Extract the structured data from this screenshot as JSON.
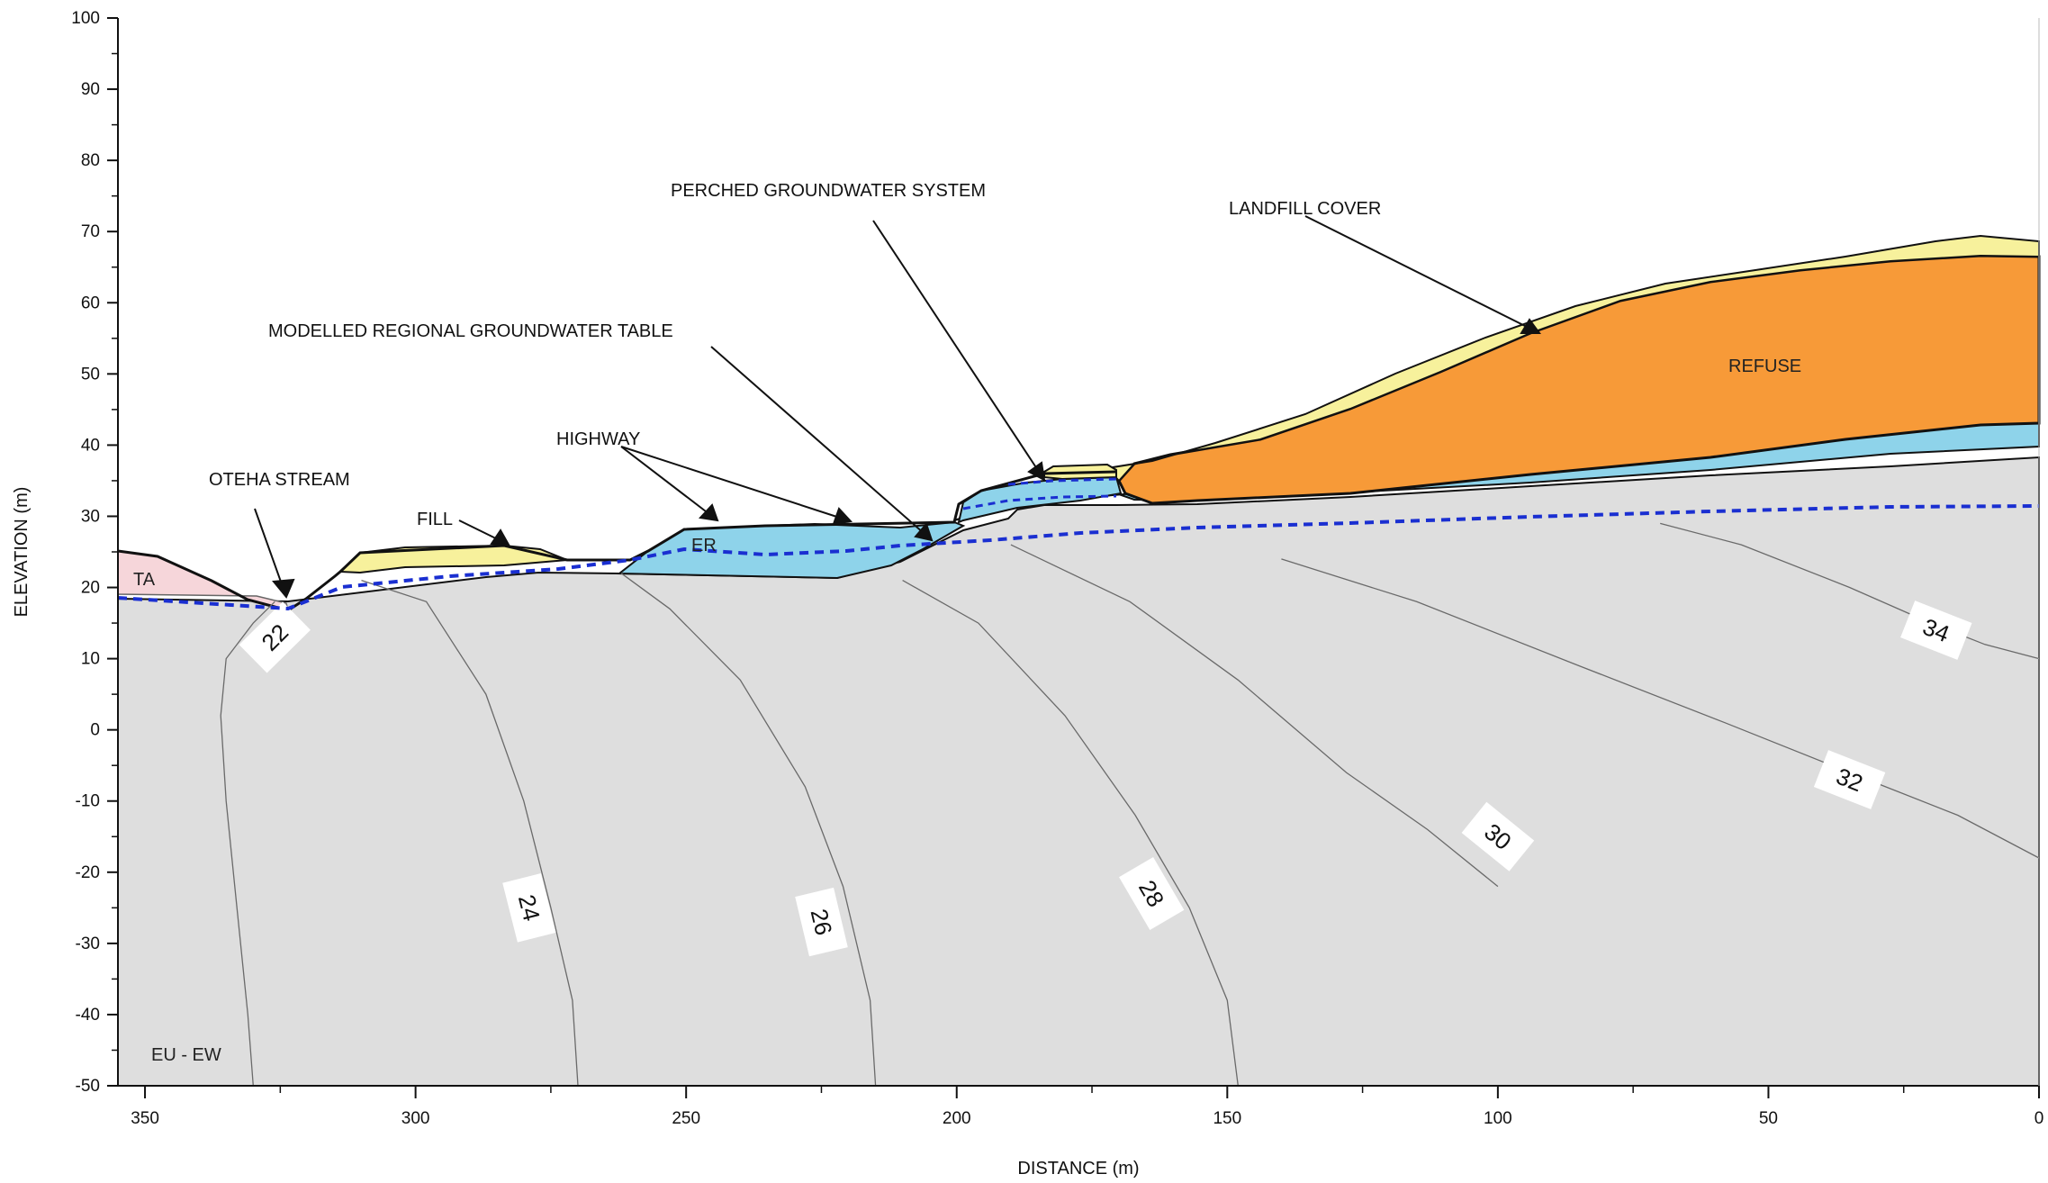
{
  "axes": {
    "xlabel": "DISTANCE (m)",
    "ylabel": "ELEVATION (m)",
    "x_range": [
      355,
      0
    ],
    "y_range": [
      -50,
      100
    ],
    "x_ticks": [
      350,
      300,
      250,
      200,
      150,
      100,
      50,
      0
    ],
    "y_ticks": [
      100,
      90,
      80,
      70,
      60,
      50,
      40,
      30,
      20,
      10,
      0,
      -10,
      -20,
      -30,
      -40,
      -50
    ]
  },
  "colors": {
    "base": "#dedede",
    "refuse": "#f79a38",
    "groundwater_unit": "#8ed3ea",
    "fill_cover": "#f7f19c",
    "ta_unit": "#f6d6da",
    "water_table": "#1a2fd1",
    "contour_line": "#6a6a6a"
  },
  "unit_labels": {
    "ta": "TA",
    "er": "ER",
    "refuse": "REFUSE",
    "eu_ew": "EU - EW"
  },
  "annotations": {
    "perched": "PERCHED GROUNDWATER SYSTEM",
    "landfill_cover": "LANDFILL COVER",
    "regional_gw": "MODELLED REGIONAL GROUNDWATER TABLE",
    "highway": "HIGHWAY",
    "oteha_stream": "OTEHA STREAM",
    "fill": "FILL"
  },
  "contours": [
    {
      "label": "22",
      "points": [
        [
          330,
          -50
        ],
        [
          331,
          -40
        ],
        [
          333,
          -25
        ],
        [
          335,
          -10
        ],
        [
          336,
          2
        ],
        [
          335,
          10
        ],
        [
          330,
          15
        ],
        [
          326,
          18
        ]
      ],
      "label_at": [
        326,
        13
      ]
    },
    {
      "label": "24",
      "points": [
        [
          270,
          -50
        ],
        [
          271,
          -38
        ],
        [
          275,
          -25
        ],
        [
          280,
          -10
        ],
        [
          287,
          5
        ],
        [
          298,
          18
        ],
        [
          310,
          21
        ]
      ],
      "label_at": [
        279,
        -25
      ]
    },
    {
      "label": "26",
      "points": [
        [
          215,
          -50
        ],
        [
          216,
          -38
        ],
        [
          221,
          -22
        ],
        [
          228,
          -8
        ],
        [
          240,
          7
        ],
        [
          253,
          17
        ],
        [
          262,
          22
        ]
      ],
      "label_at": [
        225,
        -27
      ]
    },
    {
      "label": "28",
      "points": [
        [
          148,
          -50
        ],
        [
          150,
          -38
        ],
        [
          157,
          -25
        ],
        [
          167,
          -12
        ],
        [
          180,
          2
        ],
        [
          196,
          15
        ],
        [
          210,
          21
        ]
      ],
      "label_at": [
        164,
        -23
      ]
    },
    {
      "label": "30",
      "points": [
        [
          100,
          -22
        ],
        [
          113,
          -14
        ],
        [
          128,
          -6
        ],
        [
          148,
          7
        ],
        [
          168,
          18
        ],
        [
          190,
          26
        ]
      ],
      "label_at": [
        100,
        -15
      ]
    },
    {
      "label": "32",
      "points": [
        [
          0,
          -18
        ],
        [
          15,
          -12
        ],
        [
          35,
          -6
        ],
        [
          58,
          1
        ],
        [
          85,
          9
        ],
        [
          115,
          18
        ],
        [
          140,
          24
        ]
      ],
      "label_at": [
        35,
        -7
      ]
    },
    {
      "label": "34",
      "points": [
        [
          0,
          10
        ],
        [
          10,
          12
        ],
        [
          20,
          15
        ],
        [
          35,
          20
        ],
        [
          55,
          26
        ],
        [
          70,
          29
        ]
      ],
      "label_at": [
        19,
        14
      ]
    }
  ]
}
